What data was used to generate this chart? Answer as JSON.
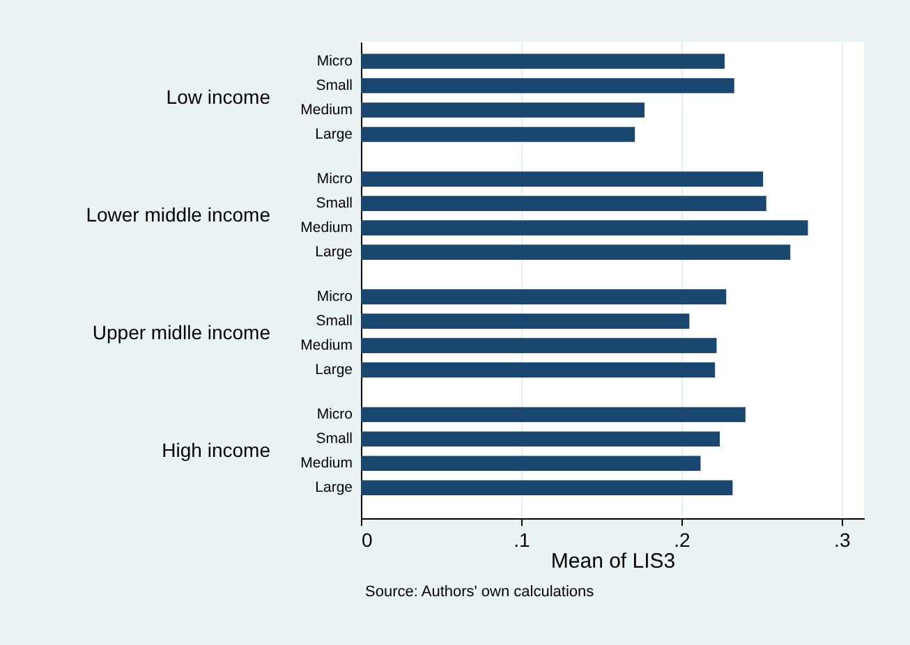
{
  "chart_data": {
    "type": "bar",
    "orientation": "horizontal",
    "xlabel": "Mean of LIS3",
    "categories": [
      "Micro",
      "Small",
      "Medium",
      "Large",
      "Micro",
      "Small",
      "Medium",
      "Large",
      "Micro",
      "Small",
      "Medium",
      "Large",
      "Micro",
      "Small",
      "Medium",
      "Large"
    ],
    "values": [
      0.227,
      0.233,
      0.177,
      0.171,
      0.251,
      0.253,
      0.279,
      0.268,
      0.228,
      0.205,
      0.222,
      0.221,
      0.24,
      0.224,
      0.212,
      0.232
    ],
    "color": "#1a476f",
    "xlim": [
      0,
      0.314
    ],
    "xticks": [
      0,
      {
        "value": 0.1,
        "label": ".1"
      },
      {
        "value": 0.2,
        "label": ".2"
      },
      {
        "value": 0.3,
        "label": ".3"
      }
    ],
    "grid": "x",
    "annotations": [
      "Low income",
      "Lower middle income",
      "Upper midlle income",
      "High income",
      "Source: Authors' own calculations"
    ]
  }
}
